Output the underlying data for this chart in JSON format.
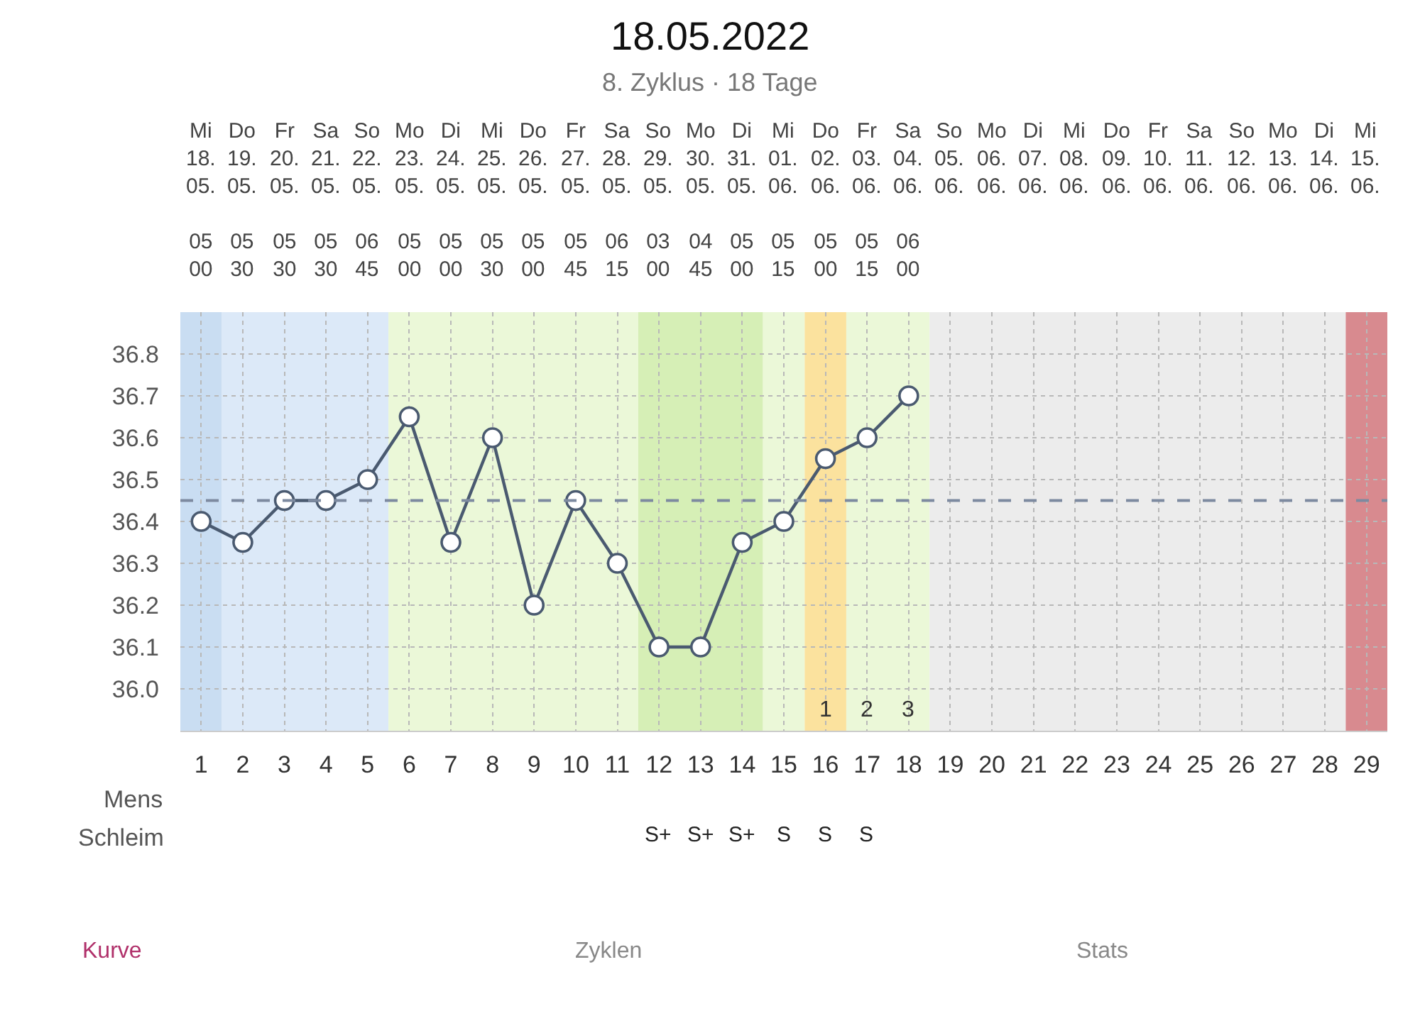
{
  "chart_data": {
    "type": "line",
    "title": "18.05.2022",
    "subtitle": "8. Zyklus · 18 Tage",
    "x": [
      1,
      2,
      3,
      4,
      5,
      6,
      7,
      8,
      9,
      10,
      11,
      12,
      13,
      14,
      15,
      16,
      17,
      18
    ],
    "series": [
      {
        "color": "#4a5a70",
        "values": [
          36.4,
          36.35,
          36.45,
          36.45,
          36.5,
          36.65,
          36.35,
          36.6,
          36.2,
          36.45,
          36.3,
          36.1,
          36.1,
          36.35,
          36.4,
          36.55,
          36.6,
          36.7
        ]
      }
    ],
    "xlim": [
      0.5,
      29.5
    ],
    "xticks": [
      1,
      2,
      3,
      4,
      5,
      6,
      7,
      8,
      9,
      10,
      11,
      12,
      13,
      14,
      15,
      16,
      17,
      18,
      19,
      20,
      21,
      22,
      23,
      24,
      25,
      26,
      27,
      28,
      29
    ],
    "ylim": [
      35.9,
      36.9
    ],
    "yticks": [
      {
        "value": 36.0,
        "label": "36.0"
      },
      36.1,
      36.2,
      36.3,
      36.4,
      36.5,
      36.6,
      36.7,
      36.8
    ],
    "grid": true,
    "marker": "circle",
    "line_style": "solid",
    "ref_lines": [
      {
        "axis": "y",
        "value": 36.45,
        "color": "#7d8aa0",
        "line_style": "dashed"
      }
    ],
    "bands": [
      {
        "axis": "x",
        "from": 0.5,
        "to": 1.5,
        "color": "#c9ddf2"
      },
      {
        "axis": "x",
        "from": 1.5,
        "to": 5.5,
        "color": "#dce9f8"
      },
      {
        "axis": "x",
        "from": 5.5,
        "to": 11.5,
        "color": "#ebf8d8"
      },
      {
        "axis": "x",
        "from": 11.5,
        "to": 14.5,
        "color": "#d6efb6"
      },
      {
        "axis": "x",
        "from": 14.5,
        "to": 15.5,
        "color": "#ebf8d8"
      },
      {
        "axis": "x",
        "from": 15.5,
        "to": 16.5,
        "color": "#fbe29e"
      },
      {
        "axis": "x",
        "from": 16.5,
        "to": 18.5,
        "color": "#ebf8d8"
      },
      {
        "axis": "x",
        "from": 18.5,
        "to": 28.5,
        "color": "#ececec"
      },
      {
        "axis": "x",
        "from": 28.5,
        "to": 29.5,
        "color": "#d88a8f"
      }
    ],
    "annotations": [
      "Mens",
      "Schleim",
      "Kurve",
      "Zyklen",
      "Stats",
      "1",
      "2",
      "3",
      "S+",
      "S+",
      "S+",
      "S",
      "S",
      "S",
      "Mi\n18.\n05.\n\n05\n00",
      "Do\n19.\n05.\n\n05\n30",
      "Fr\n20.\n05.\n\n05\n30",
      "Sa\n21.\n05.\n\n05\n30",
      "So\n22.\n05.\n\n06\n45",
      "Mo\n23.\n05.\n\n05\n00",
      "Di\n24.\n05.\n\n05\n00",
      "Mi\n25.\n05.\n\n05\n30",
      "Do\n26.\n05.\n\n05\n00",
      "Fr\n27.\n05.\n\n05\n45",
      "Sa\n28.\n05.\n\n06\n15",
      "So\n29.\n05.\n\n03\n00",
      "Mo\n30.\n05.\n\n04\n45",
      "Di\n31.\n05.\n\n05\n00",
      "Mi\n01.\n06.\n\n05\n15",
      "Do\n02.\n06.\n\n05\n00",
      "Fr\n03.\n06.\n\n05\n15",
      "Sa\n04.\n06.\n\n06\n00",
      "So\n05.\n06.",
      "Mo\n06.\n06.",
      "Di\n07.\n06.",
      "Mi\n08.\n06.",
      "Do\n09.\n06.",
      "Fr\n10.\n06.",
      "Sa\n11.\n06.",
      "So\n12.\n06.",
      "Mo\n13.\n06.",
      "Di\n14.\n06.",
      "Mi\n15.\n06."
    ]
  }
}
